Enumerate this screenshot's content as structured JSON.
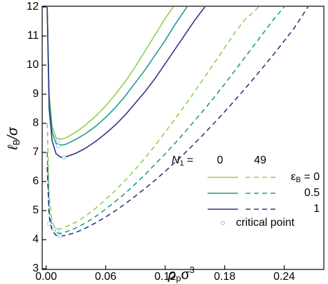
{
  "chart_data": {
    "type": "line",
    "x_label": {
      "main": "ρ",
      "sub": "p",
      "rest": "σ",
      "sup": "3"
    },
    "y_label": {
      "main": "ℓ",
      "sub": "B",
      "rest": "/σ"
    },
    "xlim": [
      -0.004,
      0.28
    ],
    "ylim": [
      3,
      12
    ],
    "xticks": [
      {
        "value": 0,
        "label": "0.00"
      },
      0.06,
      0.12,
      0.18,
      0.24
    ],
    "yticks": [
      3,
      4,
      5,
      6,
      7,
      8,
      9,
      10,
      11,
      12
    ],
    "series": [
      {
        "color": "#8cd24a",
        "dash": false,
        "x": [
          0.001,
          0.003,
          0.006,
          0.01,
          0.015,
          0.02,
          0.03,
          0.04,
          0.05,
          0.06,
          0.07,
          0.08,
          0.09,
          0.1,
          0.11,
          0.12,
          0.128
        ],
        "values": [
          12,
          9.0,
          7.9,
          7.5,
          7.45,
          7.5,
          7.7,
          7.95,
          8.25,
          8.6,
          9.0,
          9.45,
          9.95,
          10.5,
          11.05,
          11.6,
          12
        ]
      },
      {
        "color": "#8cd24a",
        "dash": true,
        "x": [
          0.001,
          0.003,
          0.006,
          0.01,
          0.015,
          0.02,
          0.03,
          0.04,
          0.05,
          0.06,
          0.07,
          0.08,
          0.09,
          0.1,
          0.11,
          0.12,
          0.13,
          0.14,
          0.15,
          0.16,
          0.17,
          0.18,
          0.19,
          0.2,
          0.21,
          0.214
        ],
        "values": [
          8,
          5.5,
          4.6,
          4.37,
          4.38,
          4.45,
          4.6,
          4.82,
          5.08,
          5.38,
          5.7,
          6.05,
          6.42,
          6.82,
          7.25,
          7.7,
          8.15,
          8.62,
          9.1,
          9.6,
          10.1,
          10.6,
          11.1,
          11.55,
          11.85,
          12
        ]
      },
      {
        "color": "#1b9a8c",
        "dash": false,
        "x": [
          0.001,
          0.003,
          0.006,
          0.01,
          0.015,
          0.02,
          0.03,
          0.04,
          0.05,
          0.06,
          0.07,
          0.08,
          0.09,
          0.1,
          0.11,
          0.12,
          0.13,
          0.142
        ],
        "values": [
          12,
          8.8,
          7.7,
          7.3,
          7.25,
          7.28,
          7.45,
          7.65,
          7.9,
          8.2,
          8.55,
          8.95,
          9.4,
          9.85,
          10.35,
          10.85,
          11.4,
          12
        ]
      },
      {
        "color": "#1b9a8c",
        "dash": true,
        "x": [
          0.001,
          0.003,
          0.006,
          0.01,
          0.015,
          0.02,
          0.03,
          0.04,
          0.05,
          0.06,
          0.07,
          0.08,
          0.09,
          0.1,
          0.11,
          0.12,
          0.13,
          0.14,
          0.15,
          0.16,
          0.17,
          0.18,
          0.19,
          0.2,
          0.21,
          0.22,
          0.23,
          0.24
        ],
        "values": [
          7,
          5.0,
          4.4,
          4.23,
          4.22,
          4.27,
          4.4,
          4.58,
          4.8,
          5.05,
          5.32,
          5.6,
          5.92,
          6.25,
          6.6,
          6.95,
          7.32,
          7.7,
          8.1,
          8.5,
          8.92,
          9.35,
          9.8,
          10.25,
          10.7,
          11.15,
          11.6,
          12
        ]
      },
      {
        "color": "#2e3383",
        "dash": false,
        "x": [
          0.001,
          0.003,
          0.006,
          0.01,
          0.015,
          0.02,
          0.03,
          0.04,
          0.05,
          0.06,
          0.07,
          0.08,
          0.09,
          0.1,
          0.11,
          0.12,
          0.13,
          0.14,
          0.15,
          0.16
        ],
        "values": [
          12,
          8.5,
          7.4,
          6.95,
          6.83,
          6.85,
          6.97,
          7.15,
          7.38,
          7.65,
          7.95,
          8.3,
          8.7,
          9.1,
          9.55,
          10.05,
          10.55,
          11.05,
          11.55,
          12
        ]
      },
      {
        "color": "#2e3383",
        "dash": true,
        "x": [
          0.001,
          0.003,
          0.006,
          0.01,
          0.015,
          0.02,
          0.03,
          0.04,
          0.05,
          0.06,
          0.07,
          0.08,
          0.09,
          0.1,
          0.11,
          0.12,
          0.13,
          0.14,
          0.15,
          0.16,
          0.17,
          0.18,
          0.19,
          0.2,
          0.21,
          0.22,
          0.23,
          0.24,
          0.25,
          0.264
        ],
        "values": [
          6.5,
          4.8,
          4.3,
          4.15,
          4.12,
          4.15,
          4.25,
          4.4,
          4.58,
          4.78,
          5.0,
          5.24,
          5.5,
          5.77,
          6.05,
          6.35,
          6.66,
          6.98,
          7.32,
          7.67,
          8.03,
          8.4,
          8.78,
          9.17,
          9.57,
          9.98,
          10.4,
          10.83,
          11.27,
          12
        ]
      }
    ],
    "critical_points": {
      "color": "#8fc8ee",
      "x": [
        0.012,
        0.012,
        0.018,
        0.003,
        0.008,
        0.011,
        0.014
      ],
      "values": [
        7.4,
        7.22,
        6.82,
        4.55,
        4.37,
        4.3,
        4.13
      ]
    },
    "legend": {
      "header": {
        "main": "N",
        "sub": "1",
        "rest": " ="
      },
      "columns": [
        0,
        49
      ],
      "row_prefix": {
        "main": "ε",
        "sub": "B",
        "rest": " = "
      },
      "rows": [
        0,
        0.5,
        1
      ],
      "marker_label": "critical point"
    }
  }
}
